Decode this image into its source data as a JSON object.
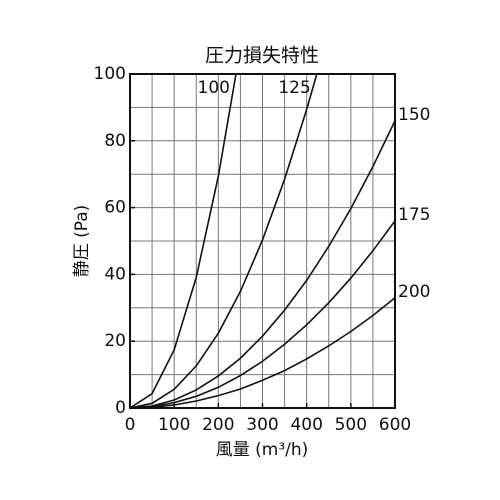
{
  "chart_data": {
    "type": "line",
    "title": "圧力損失特性",
    "x_label": "風量 (m³/h)",
    "y_label": "静圧 (Pa)",
    "xlim": [
      0,
      600
    ],
    "ylim": [
      0,
      100
    ],
    "xticks": [
      0,
      100,
      200,
      300,
      400,
      500,
      600
    ],
    "yticks": [
      0,
      20,
      40,
      60,
      80,
      100
    ],
    "grid": true,
    "x_grid_step": 50,
    "y_grid_step": 10,
    "series": [
      {
        "name": "100",
        "color": "#111111",
        "x": [
          0,
          50,
          100,
          150,
          200,
          240
        ],
        "values": [
          0,
          4.3,
          17.4,
          39.1,
          69.4,
          100
        ]
      },
      {
        "name": "125",
        "color": "#111111",
        "x": [
          0,
          50,
          100,
          150,
          200,
          250,
          300,
          350,
          400,
          423
        ],
        "values": [
          0,
          1.4,
          5.6,
          12.6,
          22.4,
          34.9,
          50.3,
          68.5,
          89.4,
          100
        ]
      },
      {
        "name": "150",
        "color": "#111111",
        "x": [
          0,
          50,
          100,
          150,
          200,
          250,
          300,
          350,
          400,
          450,
          500,
          550,
          600
        ],
        "values": [
          0,
          0.6,
          2.4,
          5.4,
          9.6,
          14.9,
          21.5,
          29.3,
          38.2,
          48.4,
          59.7,
          72.3,
          86
        ]
      },
      {
        "name": "175",
        "color": "#111111",
        "x": [
          0,
          50,
          100,
          150,
          200,
          250,
          300,
          350,
          400,
          450,
          500,
          550,
          600
        ],
        "values": [
          0,
          0.4,
          1.6,
          3.5,
          6.2,
          9.7,
          14,
          19.1,
          24.9,
          31.5,
          38.9,
          47.1,
          56
        ]
      },
      {
        "name": "200",
        "color": "#111111",
        "x": [
          0,
          50,
          100,
          150,
          200,
          250,
          300,
          350,
          400,
          450,
          500,
          550,
          600
        ],
        "values": [
          0,
          0.2,
          0.9,
          2.1,
          3.7,
          5.7,
          8.3,
          11.2,
          14.7,
          18.6,
          22.9,
          27.7,
          33
        ]
      }
    ]
  }
}
